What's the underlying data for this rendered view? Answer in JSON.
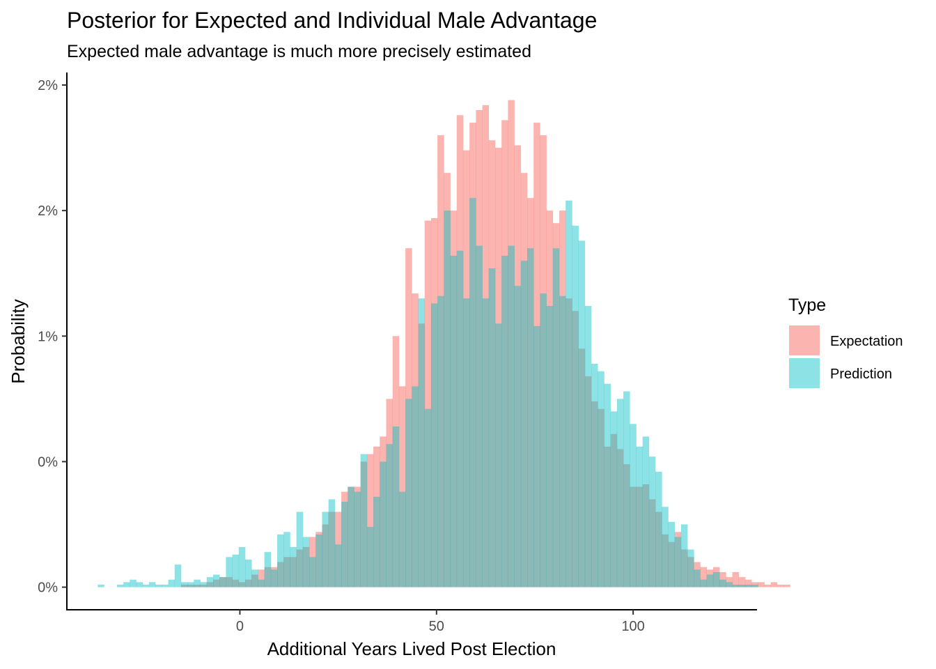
{
  "chart_data": {
    "type": "bar",
    "title": "Posterior for Expected and Individual Male Advantage",
    "subtitle": "Expected male advantage is much more precisely estimated",
    "xlabel": "Additional Years Lived Post Election",
    "ylabel": "Probability",
    "xlim": [
      -44,
      131.5
    ],
    "ylim": [
      -0.0009,
      0.0205
    ],
    "x_ticks": [
      0,
      50,
      100
    ],
    "x_tick_labels": [
      "0",
      "50",
      "100"
    ],
    "y_ticks": [
      0,
      0.005,
      0.01,
      0.015,
      0.02
    ],
    "y_tick_labels": [
      "0%",
      "0%",
      "1%",
      "2%",
      "2%"
    ],
    "grid": false,
    "legend": {
      "title": "Type",
      "position": "right"
    },
    "bin_start": -36.15,
    "bin_width": 1.63,
    "series": [
      {
        "name": "Expectation",
        "color": "#F8766D",
        "opacity": 0.55,
        "start_bin": 0,
        "values": [
          0,
          0,
          0,
          0,
          0,
          0,
          0,
          0,
          0,
          0,
          0,
          0,
          0,
          0.0001,
          0.0001,
          0.0001,
          0.0001,
          0.0002,
          0.0003,
          0.0004,
          0.0004,
          0.0003,
          0.0002,
          0.0003,
          0.0005,
          0.0007,
          0.0008,
          0.0008,
          0.001,
          0.0012,
          0.0012,
          0.0015,
          0.0016,
          0.002,
          0.0022,
          0.0025,
          0.003,
          0.003,
          0.0038,
          0.004,
          0.004,
          0.005,
          0.0053,
          0.0056,
          0.006,
          0.0075,
          0.01,
          0.008,
          0.0135,
          0.0117,
          0.0105,
          0.0146,
          0.0147,
          0.018,
          0.0165,
          0.015,
          0.0188,
          0.0174,
          0.0185,
          0.019,
          0.0192,
          0.0178,
          0.0175,
          0.0186,
          0.0194,
          0.0176,
          0.0165,
          0.0155,
          0.0185,
          0.018,
          0.015,
          0.0145,
          0.015,
          0.0115,
          0.011,
          0.0095,
          0.0084,
          0.0074,
          0.0071,
          0.0056,
          0.0061,
          0.0055,
          0.0049,
          0.004,
          0.004,
          0.0041,
          0.0035,
          0.003,
          0.0021,
          0.0018,
          0.0022,
          0.0015,
          0.0012,
          0.001,
          0.0008,
          0.0007,
          0.0008,
          0.0006,
          0.0004,
          0.0006,
          0.0004,
          0.0003,
          0.0002,
          0.0002,
          0.0001,
          0.0002,
          0.0001,
          0.0001,
          0,
          0,
          0,
          0,
          0,
          0,
          0,
          0,
          0,
          0,
          0,
          0,
          0
        ]
      },
      {
        "name": "Prediction",
        "color": "#00BFC4",
        "opacity": 0.45,
        "start_bin": 0,
        "values": [
          0.0001,
          0,
          0,
          0.0001,
          0.0002,
          0.0003,
          0.0002,
          0.0001,
          0.0002,
          0.0001,
          0.0001,
          0.0003,
          0.0009,
          0.0002,
          0.0002,
          0.0003,
          0.0002,
          0.0004,
          0.0005,
          0.0004,
          0.0012,
          0.0013,
          0.0016,
          0.0011,
          0.0007,
          0.0003,
          0.0014,
          0.0007,
          0.0021,
          0.0022,
          0.0016,
          0.003,
          0.002,
          0.0012,
          0.0021,
          0.003,
          0.0035,
          0.0017,
          0.0034,
          0.004,
          0.0038,
          0.0053,
          0.0024,
          0.0036,
          0.005,
          0.0057,
          0.0064,
          0.0038,
          0.0075,
          0.008,
          0.0115,
          0.0071,
          0.0113,
          0.0116,
          0.015,
          0.0132,
          0.0134,
          0.0115,
          0.0155,
          0.0136,
          0.0115,
          0.0127,
          0.0105,
          0.0132,
          0.0136,
          0.012,
          0.013,
          0.0135,
          0.0104,
          0.0117,
          0.0112,
          0.0135,
          0.0116,
          0.0154,
          0.0144,
          0.0138,
          0.0112,
          0.0089,
          0.0086,
          0.0081,
          0.007,
          0.0075,
          0.0078,
          0.0065,
          0.0056,
          0.006,
          0.0052,
          0.0046,
          0.0032,
          0.0026,
          0.002,
          0.0025,
          0.0015,
          0.0007,
          0.0003,
          0.0005,
          0.0006,
          0.0003,
          0.0002,
          0.0001,
          0.0001,
          0.0001,
          0.0001,
          0,
          0,
          0,
          0,
          0,
          0,
          0,
          0,
          0,
          0,
          0,
          0,
          0,
          0,
          0,
          0,
          0,
          0,
          0,
          0,
          0,
          0,
          0,
          0,
          0,
          0,
          0,
          0,
          0,
          0,
          0,
          0
        ]
      }
    ]
  }
}
